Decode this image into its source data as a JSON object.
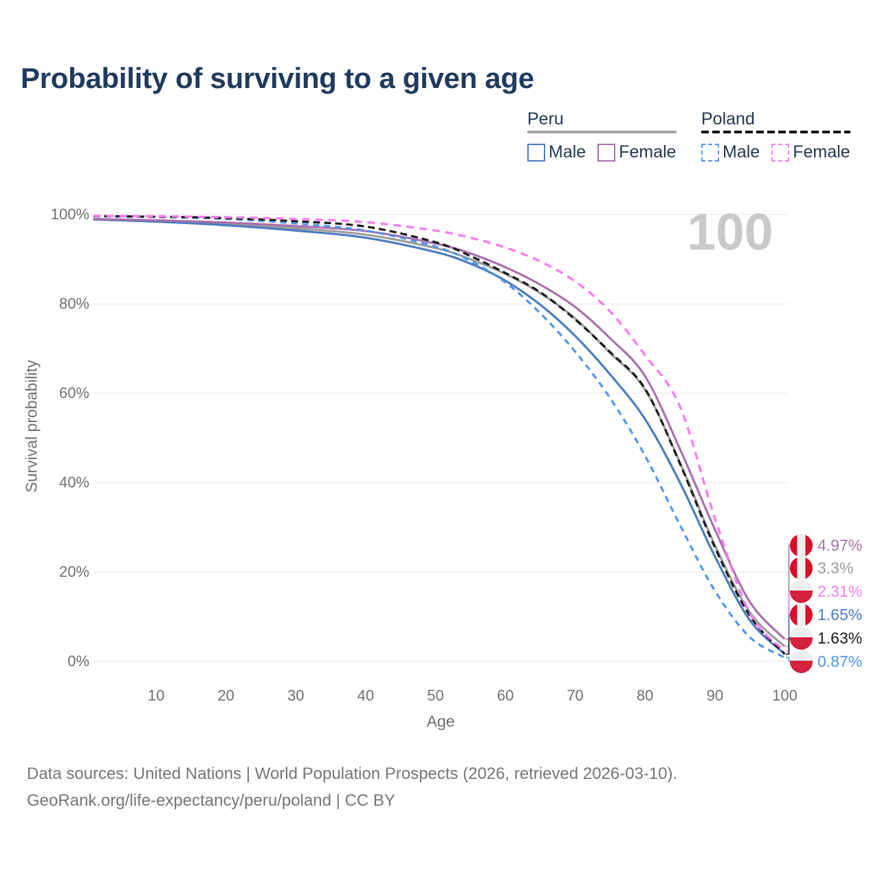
{
  "page": {
    "title": "Probability of surviving to a given age",
    "background": "#ffffff"
  },
  "watermark": "100",
  "legend": {
    "groups": [
      {
        "name": "Peru",
        "line_style": "solid",
        "line_color": "#a3a3a3",
        "items": [
          {
            "label": "Male",
            "series": "peru_male",
            "color": "#4b7cc0",
            "dashed": false
          },
          {
            "label": "Female",
            "series": "peru_female",
            "color": "#a96fae",
            "dashed": false
          }
        ]
      },
      {
        "name": "Poland",
        "line_style": "dashed",
        "line_color": "#141414",
        "items": [
          {
            "label": "Male",
            "series": "poland_male",
            "color": "#4f95ef",
            "dashed": true
          },
          {
            "label": "Female",
            "series": "poland_female",
            "color": "#f87df2",
            "dashed": true
          }
        ]
      }
    ]
  },
  "flags": {
    "peru": {
      "red": "#d8102a",
      "white": "#efefef",
      "layout": "vertical-red-white-red"
    },
    "poland": {
      "red": "#d4213d",
      "white": "#efefef",
      "layout": "horizontal-white-over-red"
    }
  },
  "chart_data": {
    "type": "line",
    "title": "Probability of surviving to a given age",
    "xlabel": "Age",
    "ylabel": "Survival probability",
    "xlim": [
      0,
      100
    ],
    "ylim": [
      0,
      100
    ],
    "grid": "horizontal",
    "legend_position": "top-right",
    "x_ticks": [
      10,
      20,
      30,
      40,
      50,
      60,
      70,
      80,
      90,
      100
    ],
    "y_ticks": [
      {
        "value": 100,
        "label": "100%"
      },
      {
        "value": 80,
        "label": "80%"
      },
      {
        "value": 60,
        "label": "60%"
      },
      {
        "value": 40,
        "label": "40%"
      },
      {
        "value": 20,
        "label": "20%"
      },
      {
        "value": 0,
        "label": "0%"
      }
    ],
    "series": [
      {
        "key": "peru_both",
        "name": "Peru (both sexes)",
        "color": "#9b9b9b",
        "dash": null,
        "width": 3.2,
        "points": [
          [
            1,
            98.95
          ],
          [
            10,
            98.55
          ],
          [
            20,
            97.9
          ],
          [
            30,
            96.9
          ],
          [
            40,
            95.5
          ],
          [
            50,
            92.5
          ],
          [
            55,
            90.0
          ],
          [
            60,
            86.7
          ],
          [
            65,
            82.4
          ],
          [
            70,
            76.7
          ],
          [
            75,
            69.0
          ],
          [
            80,
            60.8
          ],
          [
            85,
            44.5
          ],
          [
            90,
            26.0
          ],
          [
            95,
            11.0
          ],
          [
            100,
            3.3
          ]
        ]
      },
      {
        "key": "peru_male",
        "name": "Peru Male",
        "color": "#4b7cc0",
        "dash": null,
        "width": 3.2,
        "points": [
          [
            1,
            98.9
          ],
          [
            10,
            98.4
          ],
          [
            20,
            97.6
          ],
          [
            30,
            96.4
          ],
          [
            40,
            94.8
          ],
          [
            50,
            91.6
          ],
          [
            55,
            89.0
          ],
          [
            60,
            85.2
          ],
          [
            65,
            79.8
          ],
          [
            70,
            72.8
          ],
          [
            75,
            64.2
          ],
          [
            80,
            54.2
          ],
          [
            85,
            40.0
          ],
          [
            90,
            23.5
          ],
          [
            95,
            9.2
          ],
          [
            100,
            1.65
          ]
        ]
      },
      {
        "key": "peru_female",
        "name": "Peru Female",
        "color": "#a96fae",
        "dash": null,
        "width": 3.2,
        "points": [
          [
            1,
            99.0
          ],
          [
            10,
            98.7
          ],
          [
            20,
            98.2
          ],
          [
            30,
            97.4
          ],
          [
            40,
            96.3
          ],
          [
            50,
            93.5
          ],
          [
            55,
            91.3
          ],
          [
            60,
            88.2
          ],
          [
            65,
            84.3
          ],
          [
            70,
            79.3
          ],
          [
            75,
            72.3
          ],
          [
            80,
            63.8
          ],
          [
            85,
            47.5
          ],
          [
            90,
            29.5
          ],
          [
            95,
            13.3
          ],
          [
            100,
            4.97
          ]
        ]
      },
      {
        "key": "poland_male",
        "name": "Poland Male",
        "color": "#4f95ef",
        "dash": "9 7",
        "width": 3.2,
        "points": [
          [
            1,
            99.6
          ],
          [
            10,
            99.45
          ],
          [
            20,
            99.0
          ],
          [
            30,
            98.0
          ],
          [
            40,
            96.4
          ],
          [
            50,
            92.8
          ],
          [
            55,
            89.6
          ],
          [
            60,
            84.8
          ],
          [
            65,
            77.9
          ],
          [
            70,
            69.3
          ],
          [
            75,
            58.9
          ],
          [
            80,
            46.0
          ],
          [
            85,
            30.5
          ],
          [
            90,
            15.8
          ],
          [
            95,
            5.4
          ],
          [
            100,
            0.87
          ]
        ]
      },
      {
        "key": "poland_both",
        "name": "Poland (both sexes)",
        "color": "#1b1b1b",
        "dash": "10 6",
        "width": 3.2,
        "points": [
          [
            1,
            99.65
          ],
          [
            10,
            99.5
          ],
          [
            20,
            99.2
          ],
          [
            30,
            98.5
          ],
          [
            40,
            97.3
          ],
          [
            50,
            93.8
          ],
          [
            55,
            90.7
          ],
          [
            60,
            86.9
          ],
          [
            65,
            82.6
          ],
          [
            70,
            76.5
          ],
          [
            75,
            69.2
          ],
          [
            80,
            61.0
          ],
          [
            85,
            44.2
          ],
          [
            90,
            25.5
          ],
          [
            95,
            10.2
          ],
          [
            100,
            1.63
          ]
        ]
      },
      {
        "key": "poland_female",
        "name": "Poland Female",
        "color": "#f87df2",
        "dash": "11 8",
        "width": 3.4,
        "points": [
          [
            1,
            99.7
          ],
          [
            10,
            99.6
          ],
          [
            20,
            99.4
          ],
          [
            30,
            99.0
          ],
          [
            40,
            98.3
          ],
          [
            50,
            96.4
          ],
          [
            55,
            94.8
          ],
          [
            60,
            92.6
          ],
          [
            65,
            89.5
          ],
          [
            70,
            85.0
          ],
          [
            75,
            78.3
          ],
          [
            80,
            68.5
          ],
          [
            85,
            57.0
          ],
          [
            90,
            32.0
          ],
          [
            95,
            10.8
          ],
          [
            100,
            2.31
          ]
        ]
      }
    ],
    "end_labels": [
      {
        "text": "4.97%",
        "value": 4.97,
        "series": "peru_female",
        "flag": "peru"
      },
      {
        "text": "3.3%",
        "value": 3.3,
        "series": "peru_both",
        "flag": "peru"
      },
      {
        "text": "2.31%",
        "value": 2.31,
        "series": "poland_female",
        "flag": "poland"
      },
      {
        "text": "1.65%",
        "value": 1.65,
        "series": "peru_male",
        "flag": "peru"
      },
      {
        "text": "1.63%",
        "value": 1.63,
        "series": "poland_both",
        "flag": "poland"
      },
      {
        "text": "0.87%",
        "value": 0.87,
        "series": "poland_male",
        "flag": "poland"
      }
    ]
  },
  "footer": {
    "line1": "Data sources: United Nations | World Population Prospects (2026, retrieved 2026-03-10).",
    "line2": "GeoRank.org/life-expectancy/peru/poland | CC BY"
  }
}
